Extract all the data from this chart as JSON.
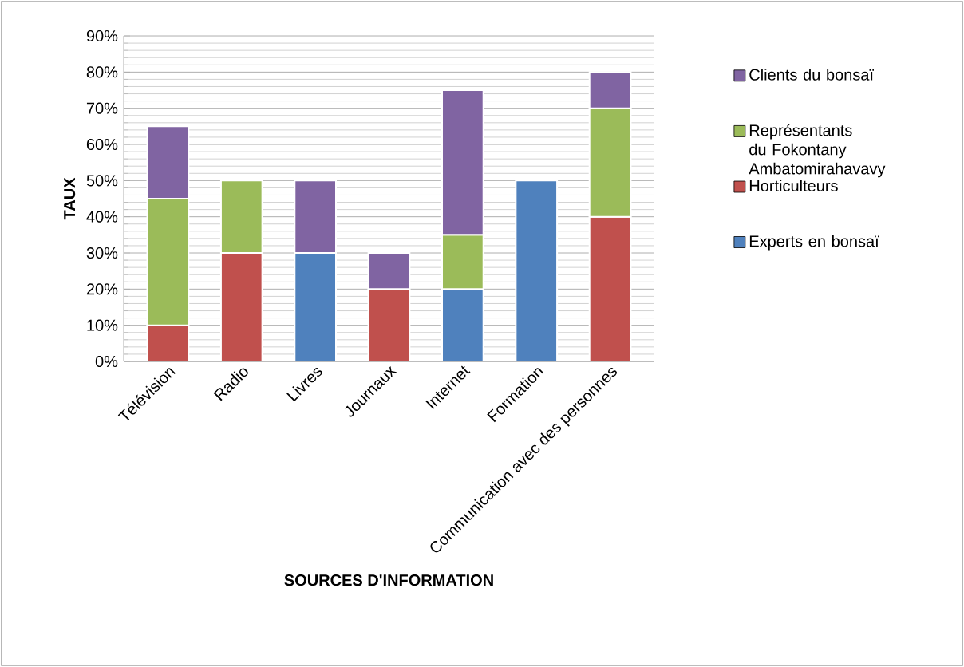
{
  "chart_data": {
    "type": "bar",
    "stacked": true,
    "xlabel": "SOURCES D'INFORMATION",
    "ylabel": "TAUX",
    "categories": [
      "Télévision",
      "Radio",
      "Livres",
      "Journaux",
      "Internet",
      "Formation",
      "Communication avec des personnes"
    ],
    "series": [
      {
        "name": "Experts en bonsaï",
        "color": "#4f81bd",
        "values": [
          null,
          null,
          30,
          null,
          20,
          50,
          null
        ]
      },
      {
        "name": "Horticulteurs",
        "color": "#c0504d",
        "values": [
          10,
          30,
          null,
          20,
          null,
          null,
          40
        ]
      },
      {
        "name": "Représentants du Fokontany Ambatomirahavavy",
        "color": "#9bbb59",
        "values": [
          35,
          20,
          null,
          null,
          15,
          null,
          30
        ]
      },
      {
        "name": "Clients du bonsaï",
        "color": "#8064a2",
        "values": [
          20,
          null,
          20,
          10,
          40,
          null,
          10
        ]
      }
    ],
    "ylim": [
      0,
      90
    ],
    "yticks": [
      {
        "value": 0,
        "label": "0%"
      },
      {
        "value": 10,
        "label": "10%"
      },
      {
        "value": 20,
        "label": "20%"
      },
      {
        "value": 30,
        "label": "30%"
      },
      {
        "value": 40,
        "label": "40%"
      },
      {
        "value": 50,
        "label": "50%"
      },
      {
        "value": 60,
        "label": "60%"
      },
      {
        "value": 70,
        "label": "70%"
      },
      {
        "value": 80,
        "label": "80%"
      },
      {
        "value": 90,
        "label": "90%"
      }
    ],
    "grid": "y",
    "legend": "right"
  }
}
